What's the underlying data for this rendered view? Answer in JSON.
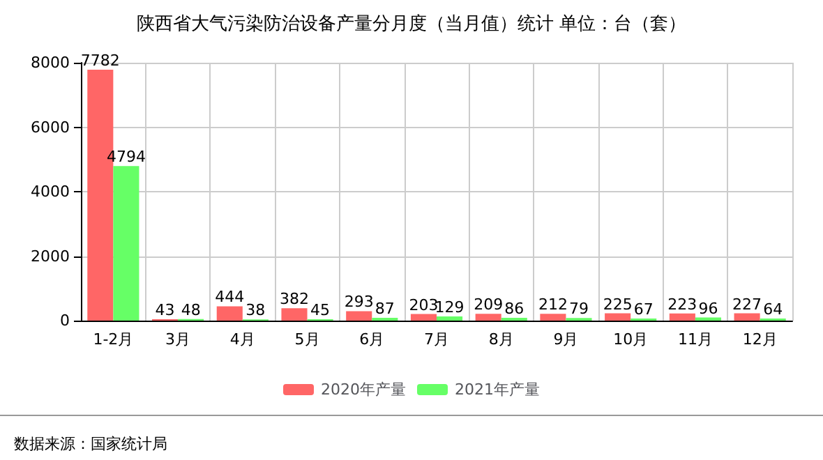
{
  "chart_data": {
    "type": "bar",
    "title": "陕西省大气污染防治设备产量分月度（当月值）统计 单位：台（套）",
    "categories": [
      "1-2月",
      "3月",
      "4月",
      "5月",
      "6月",
      "7月",
      "8月",
      "9月",
      "10月",
      "11月",
      "12月"
    ],
    "series": [
      {
        "name": "2020年产量",
        "color": "#ff6666",
        "values": [
          7782,
          43,
          444,
          382,
          293,
          203,
          209,
          212,
          225,
          223,
          227
        ]
      },
      {
        "name": "2021年产量",
        "color": "#66ff66",
        "values": [
          4794,
          48,
          38,
          45,
          87,
          129,
          86,
          79,
          67,
          96,
          64
        ]
      }
    ],
    "ylim": [
      0,
      8000
    ],
    "yticks": [
      0,
      2000,
      4000,
      6000,
      8000
    ],
    "grid": true,
    "legend": "bottom",
    "data_labels": true,
    "annotations": [
      "数据来源：国家统计局"
    ]
  }
}
